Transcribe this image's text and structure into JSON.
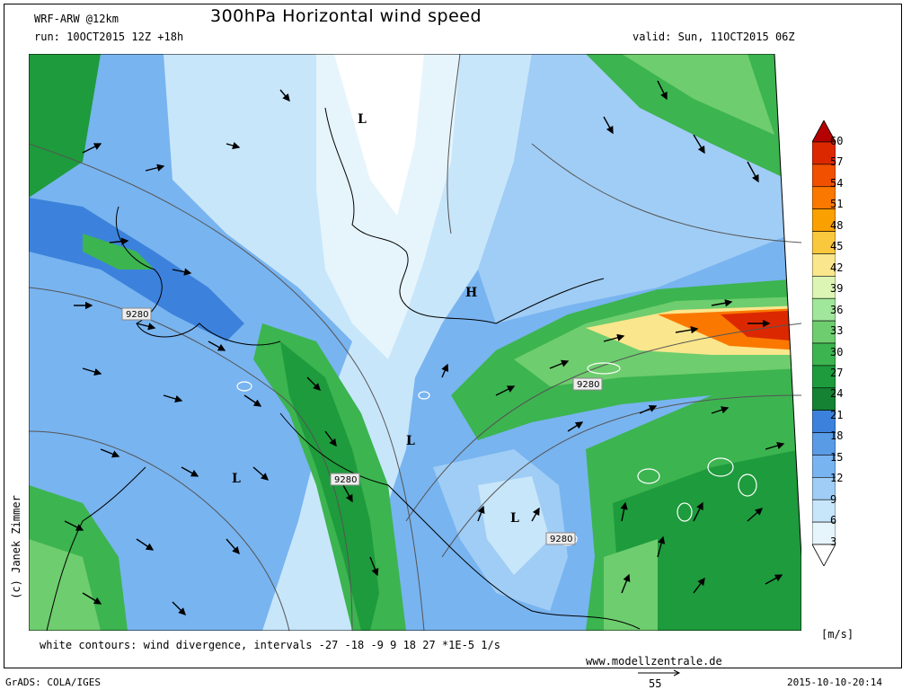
{
  "header": {
    "model": "WRF-ARW @12km",
    "title": "300hPa Horizontal wind speed",
    "run": "run: 10OCT2015 12Z +18h",
    "valid": "valid: Sun, 11OCT2015 06Z"
  },
  "map": {
    "pressure_labels": [
      "9280",
      "9280",
      "9280",
      "9280"
    ],
    "pressure_centers": [
      "L",
      "H",
      "L",
      "L",
      "L"
    ]
  },
  "colorbar": {
    "levels": [
      "60",
      "57",
      "54",
      "51",
      "48",
      "45",
      "42",
      "39",
      "36",
      "33",
      "30",
      "27",
      "24",
      "21",
      "18",
      "15",
      "12",
      "9",
      "6",
      "3"
    ],
    "colors": [
      "#b40000",
      "#dc2800",
      "#f05000",
      "#fa7800",
      "#faa000",
      "#fac83c",
      "#fae68c",
      "#dcf5b4",
      "#a0e69b",
      "#6ecd6e",
      "#3cb450",
      "#1e9b3c",
      "#148232",
      "#3c82dc",
      "#5a9be6",
      "#78b4f0",
      "#a0cdf5",
      "#c8e6fa",
      "#e6f5fc",
      "#ffffff"
    ],
    "units": "[m/s]"
  },
  "footer": {
    "note": "white contours: wind divergence, intervals -27 -18 -9 9 18 27 *1E-5 1/s",
    "site": "www.modellzentrale.de",
    "software": "GrADS: COLA/IGES",
    "datetime": "2015-10-10-20:14",
    "copyright": "(c) Janek Zimmer",
    "reference_vector": "55"
  }
}
